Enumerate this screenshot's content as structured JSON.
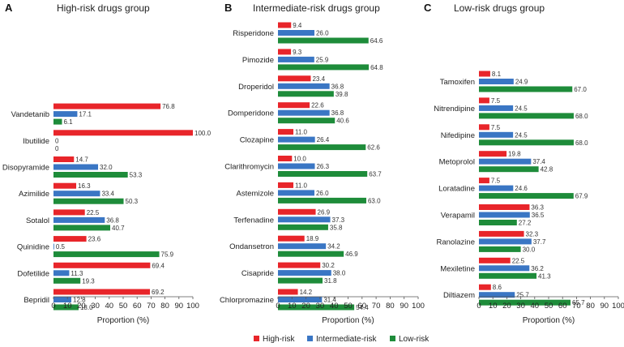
{
  "legend": [
    {
      "name": "High-risk",
      "color": "#e8252a"
    },
    {
      "name": "Intermediate-risk",
      "color": "#3a76c4"
    },
    {
      "name": "Low-risk",
      "color": "#1e8c3a"
    }
  ],
  "chart_data": [
    {
      "type": "bar",
      "orientation": "horizontal",
      "panel": "A",
      "title": "High-risk drugs group",
      "xlabel": "Proportion (%)",
      "xlim": [
        0,
        100
      ],
      "xticks": [
        0,
        10,
        20,
        30,
        40,
        50,
        60,
        70,
        80,
        90,
        100
      ],
      "categories": [
        "Vandetanib",
        "Ibutilide",
        "Disopyramide",
        "Azimilide",
        "Sotalol",
        "Quinidine",
        "Dofetilide",
        "Bepridil"
      ],
      "series": [
        {
          "name": "High-risk",
          "values": [
            76.8,
            100.0,
            14.7,
            16.3,
            22.5,
            23.6,
            69.4,
            69.2
          ],
          "labels": [
            "76.8",
            "100.0",
            "14.7",
            "16.3",
            "22.5",
            "23.6",
            "69.4",
            "69.2"
          ]
        },
        {
          "name": "Intermediate-risk",
          "values": [
            17.1,
            0,
            32.0,
            33.4,
            36.8,
            0.5,
            11.3,
            12.8
          ],
          "labels": [
            "17.1",
            "0",
            "32.0",
            "33.4",
            "36.8",
            "0.5",
            "11.3",
            "12.8"
          ]
        },
        {
          "name": "Low-risk",
          "values": [
            6.1,
            0,
            53.3,
            50.3,
            40.7,
            75.9,
            19.3,
            18.0
          ],
          "labels": [
            "6.1",
            "0",
            "53.3",
            "50.3",
            "40.7",
            "75.9",
            "19.3",
            "18.0"
          ]
        }
      ]
    },
    {
      "type": "bar",
      "orientation": "horizontal",
      "panel": "B",
      "title": "Intermediate-risk drugs group",
      "xlabel": "Proportion (%)",
      "xlim": [
        0,
        100
      ],
      "xticks": [
        0,
        10,
        20,
        30,
        40,
        50,
        60,
        70,
        80,
        90,
        100
      ],
      "categories": [
        "Risperidone",
        "Pimozide",
        "Droperidol",
        "Domperidone",
        "Clozapine",
        "Clarithromycin",
        "Astemizole",
        "Terfenadine",
        "Ondansetron",
        "Cisapride",
        "Chlorpromazine"
      ],
      "series": [
        {
          "name": "High-risk",
          "values": [
            9.4,
            9.3,
            23.4,
            22.6,
            11.0,
            10.0,
            11.0,
            26.9,
            18.9,
            30.2,
            14.2
          ],
          "labels": [
            "9.4",
            "9.3",
            "23.4",
            "22.6",
            "11.0",
            "10.0",
            "11.0",
            "26.9",
            "18.9",
            "30.2",
            "14.2"
          ]
        },
        {
          "name": "Intermediate-risk",
          "values": [
            26.0,
            25.9,
            36.8,
            36.8,
            26.4,
            26.3,
            26.0,
            37.3,
            34.2,
            38.0,
            31.4
          ],
          "labels": [
            "26.0",
            "25.9",
            "36.8",
            "36.8",
            "26.4",
            "26.3",
            "26.0",
            "37.3",
            "34.2",
            "38.0",
            "31.4"
          ]
        },
        {
          "name": "Low-risk",
          "values": [
            64.6,
            64.8,
            39.8,
            40.6,
            62.6,
            63.7,
            63.0,
            35.8,
            46.9,
            31.8,
            54.4
          ],
          "labels": [
            "64.6",
            "64.8",
            "39.8",
            "40.6",
            "62.6",
            "63.7",
            "63.0",
            "35.8",
            "46.9",
            "31.8",
            "54.4"
          ]
        }
      ]
    },
    {
      "type": "bar",
      "orientation": "horizontal",
      "panel": "C",
      "title": "Low-risk drugs group",
      "xlabel": "Proportion (%)",
      "xlim": [
        0,
        100
      ],
      "xticks": [
        0,
        10,
        20,
        30,
        40,
        50,
        60,
        70,
        80,
        90,
        100
      ],
      "categories": [
        "Tamoxifen",
        "Nitrendipine",
        "Nifedipine",
        "Metoprolol",
        "Loratadine",
        "Verapamil",
        "Ranolazine",
        "Mexiletine",
        "Diltiazem"
      ],
      "series": [
        {
          "name": "High-risk",
          "values": [
            8.1,
            7.5,
            7.5,
            19.8,
            7.5,
            36.3,
            32.3,
            22.5,
            8.6
          ],
          "labels": [
            "8.1",
            "7.5",
            "7.5",
            "19.8",
            "7.5",
            "36.3",
            "32.3",
            "22.5",
            "8.6"
          ]
        },
        {
          "name": "Intermediate-risk",
          "values": [
            24.9,
            24.5,
            24.5,
            37.4,
            24.6,
            36.5,
            37.7,
            36.2,
            25.7
          ],
          "labels": [
            "24.9",
            "24.5",
            "24.5",
            "37.4",
            "24.6",
            "36.5",
            "37.7",
            "36.2",
            "25.7"
          ]
        },
        {
          "name": "Low-risk",
          "values": [
            67.0,
            68.0,
            68.0,
            42.8,
            67.9,
            27.2,
            30.0,
            41.3,
            65.7
          ],
          "labels": [
            "67.0",
            "68.0",
            "68.0",
            "42.8",
            "67.9",
            "27.2",
            "30.0",
            "41.3",
            "65.7"
          ]
        }
      ]
    }
  ]
}
